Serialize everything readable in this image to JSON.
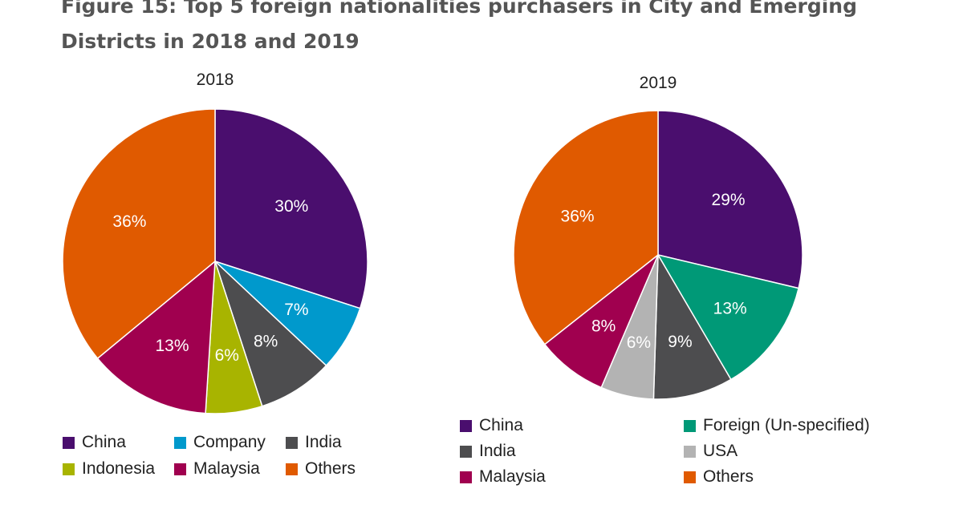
{
  "title": "Figure 15: Top 5 foreign nationalities purchasers in City and Emerging Districts in 2018 and 2019",
  "chart_data": [
    {
      "type": "pie",
      "title": "2018",
      "start_angle_deg": 0,
      "direction": "clockwise",
      "slices": [
        {
          "label": "China",
          "value": 30,
          "display": "30%",
          "color": "#4a0e6e"
        },
        {
          "label": "Company",
          "value": 7,
          "display": "7%",
          "color": "#0099cc"
        },
        {
          "label": "India",
          "value": 8,
          "display": "8%",
          "color": "#4d4d4f"
        },
        {
          "label": "Indonesia",
          "value": 6,
          "display": "6%",
          "color": "#a8b400"
        },
        {
          "label": "Malaysia",
          "value": 13,
          "display": "13%",
          "color": "#a0004f"
        },
        {
          "label": "Others",
          "value": 36,
          "display": "36%",
          "color": "#e05a00"
        }
      ],
      "legend": [
        "China",
        "Company",
        "India",
        "Indonesia",
        "Malaysia",
        "Others"
      ]
    },
    {
      "type": "pie",
      "title": "2019",
      "start_angle_deg": 0,
      "direction": "clockwise",
      "slices": [
        {
          "label": "China",
          "value": 29,
          "display": "29%",
          "color": "#4a0e6e"
        },
        {
          "label": "Foreign (Un-specified)",
          "value": 13,
          "display": "13%",
          "color": "#009977"
        },
        {
          "label": "India",
          "value": 9,
          "display": "9%",
          "color": "#4d4d4f"
        },
        {
          "label": "USA",
          "value": 6,
          "display": "6%",
          "color": "#b3b3b3"
        },
        {
          "label": "Malaysia",
          "value": 8,
          "display": "8%",
          "color": "#a0004f"
        },
        {
          "label": "Others",
          "value": 36,
          "display": "36%",
          "color": "#e05a00"
        }
      ],
      "legend": [
        "China",
        "Foreign (Un-specified)",
        "India",
        "USA",
        "Malaysia",
        "Others"
      ]
    }
  ]
}
